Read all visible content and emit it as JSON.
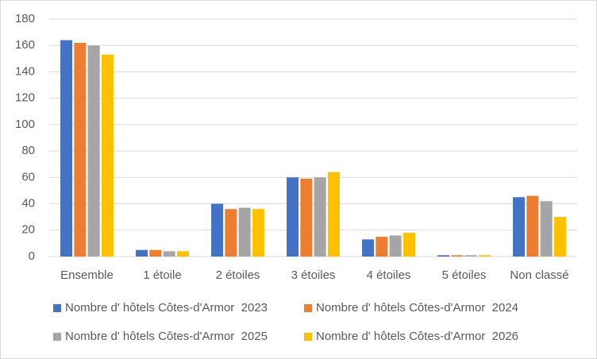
{
  "chart_data": {
    "type": "bar",
    "categories": [
      "Ensemble",
      "1 étoile",
      "2 étoiles",
      "3 étoiles",
      "4 étoiles",
      "5 étoiles",
      "Non classé"
    ],
    "series": [
      {
        "name": "Nombre d' hôtels Côtes-d'Armor  2023",
        "color": "#4472c4",
        "values": [
          164,
          5,
          40,
          60,
          13,
          1,
          45
        ]
      },
      {
        "name": "Nombre d' hôtels Côtes-d'Armor  2024",
        "color": "#ed7d31",
        "values": [
          162,
          5,
          36,
          59,
          15,
          1,
          46
        ]
      },
      {
        "name": "Nombre d' hôtels Côtes-d'Armor  2025",
        "color": "#a5a5a5",
        "values": [
          160,
          4,
          37,
          60,
          16,
          1,
          42
        ]
      },
      {
        "name": "Nombre d' hôtels Côtes-d'Armor  2026",
        "color": "#ffc000",
        "values": [
          153,
          4,
          36,
          64,
          18,
          1,
          30
        ]
      }
    ],
    "ylim": [
      0,
      180
    ],
    "yticks": [
      0,
      20,
      40,
      60,
      80,
      100,
      120,
      140,
      160,
      180
    ],
    "grid": true
  }
}
